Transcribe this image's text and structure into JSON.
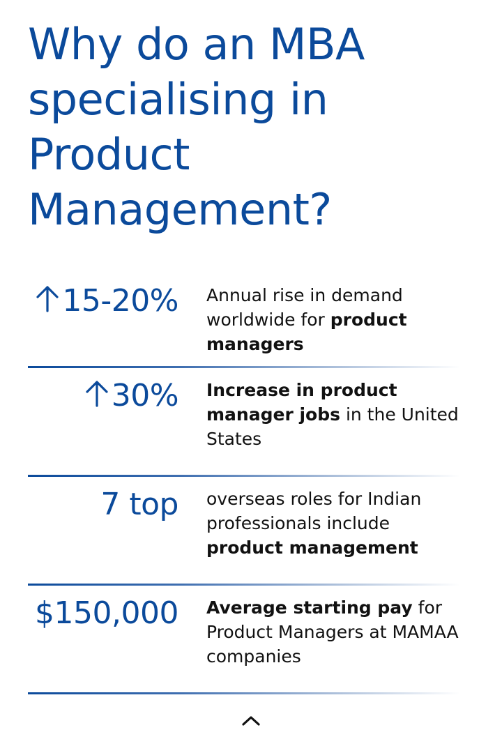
{
  "heading": "Why do an MBA specialising in Product Management?",
  "stats": [
    {
      "arrow": "arrow-up-icon",
      "value": "15-20%",
      "desc_pre": "Annual rise in demand worldwide for ",
      "desc_bold": "product managers",
      "desc_post": ""
    },
    {
      "arrow": "arrow-up-icon",
      "value": "30%",
      "desc_pre": "",
      "desc_bold": "Increase in product manager jobs",
      "desc_post": " in the United States"
    },
    {
      "value": "7 top",
      "desc_pre": "overseas roles for Indian professionals include ",
      "desc_bold": "product management",
      "desc_post": ""
    },
    {
      "value": "$150,000",
      "desc_pre": "",
      "desc_bold": "Average starting pay",
      "desc_post": " for Product Managers at MAMAA companies"
    }
  ],
  "colors": {
    "accent": "#0b4a9b",
    "text": "#111111"
  },
  "scroll_button_icon": "chevron-up-icon"
}
